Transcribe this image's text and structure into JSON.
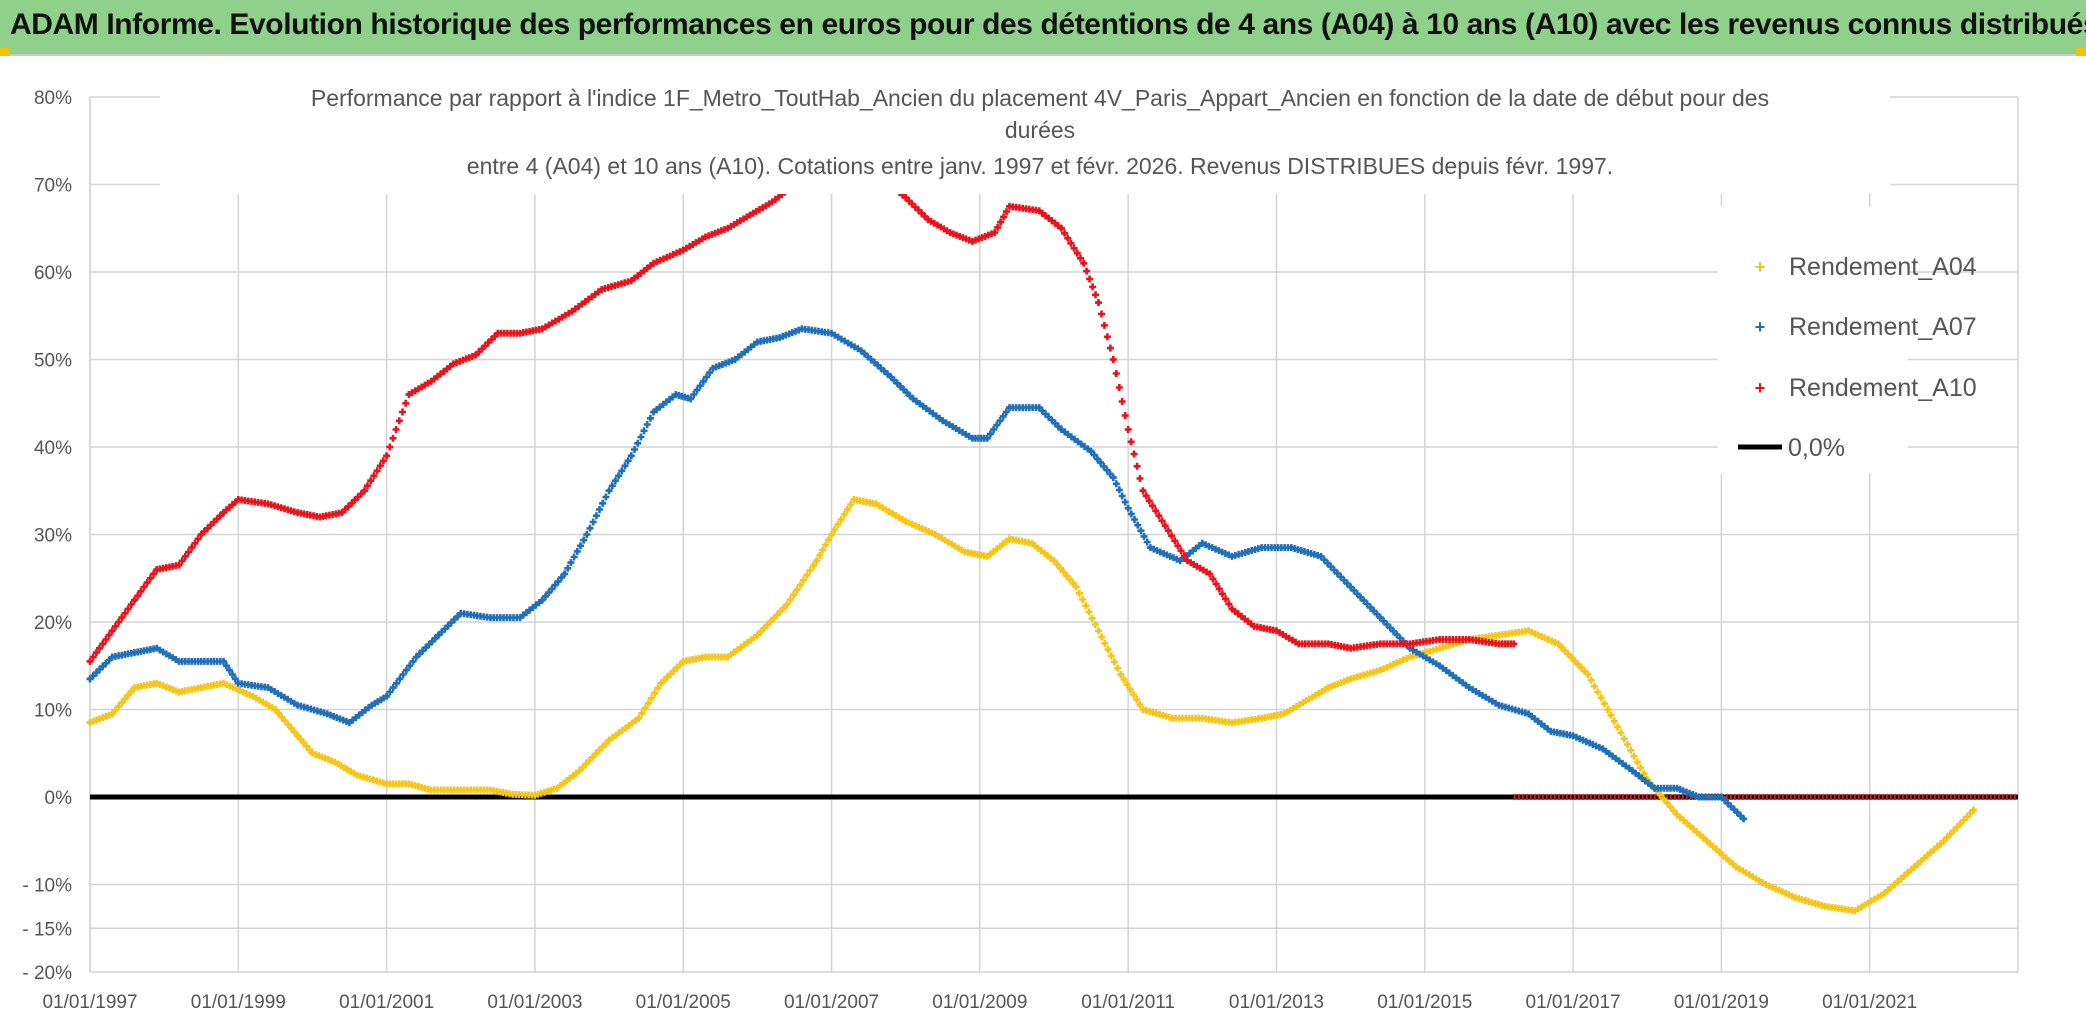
{
  "header": {
    "title": "ADAM Informe. Evolution historique des performances en euros pour des détentions de 4 ans (A04) à 10 ans (A10) avec les revenus connus distribués"
  },
  "chart_data": {
    "type": "scatter",
    "title_lines": [
      "Performance par rapport à l'indice 1F_Metro_ToutHab_Ancien  du placement 4V_Paris_Appart_Ancien en fonction de la date de début pour des",
      "durées",
      "entre 4 (A04) et 10 ans (A10). Cotations entre janv. 1997 et févr. 2026. Revenus DISTRIBUES depuis févr. 1997."
    ],
    "xlabel": "",
    "ylabel": "",
    "x_range": [
      1997.0,
      2023.0
    ],
    "ylim": [
      -20,
      80
    ],
    "x_tick_labels": [
      "01/01/1997",
      "01/01/1999",
      "01/01/2001",
      "01/01/2003",
      "01/01/2005",
      "01/01/2007",
      "01/01/2009",
      "01/01/2011",
      "01/01/2013",
      "01/01/2015",
      "01/01/2017",
      "01/01/2019",
      "01/01/2021"
    ],
    "x_tick_values": [
      1997,
      1999,
      2001,
      2003,
      2005,
      2007,
      2009,
      2011,
      2013,
      2015,
      2017,
      2019,
      2021
    ],
    "y_tick_labels": [
      "80%",
      "70%",
      "60%",
      "50%",
      "40%",
      "30%",
      "20%",
      "10%",
      "0%",
      "- 10%",
      "- 15%",
      "- 20%"
    ],
    "y_tick_values": [
      80,
      70,
      60,
      50,
      40,
      30,
      20,
      10,
      0,
      -10,
      -15,
      -20
    ],
    "grid": true,
    "legend_position": "top-right",
    "series": [
      {
        "name": "Rendement_A04",
        "color": "#f5c518",
        "points": [
          [
            1997.0,
            8.5
          ],
          [
            1997.3,
            9.5
          ],
          [
            1997.6,
            12.5
          ],
          [
            1997.9,
            13.0
          ],
          [
            1998.2,
            12.0
          ],
          [
            1998.5,
            12.5
          ],
          [
            1998.8,
            13.0
          ],
          [
            1999.2,
            11.5
          ],
          [
            1999.5,
            10.0
          ],
          [
            1999.8,
            7.0
          ],
          [
            2000.0,
            5.0
          ],
          [
            2000.3,
            4.0
          ],
          [
            2000.6,
            2.5
          ],
          [
            2001.0,
            1.5
          ],
          [
            2001.3,
            1.5
          ],
          [
            2001.6,
            0.8
          ],
          [
            2002.0,
            0.8
          ],
          [
            2002.4,
            0.8
          ],
          [
            2002.7,
            0.3
          ],
          [
            2003.0,
            0.2
          ],
          [
            2003.3,
            1.0
          ],
          [
            2003.6,
            3.0
          ],
          [
            2004.0,
            6.5
          ],
          [
            2004.4,
            9.0
          ],
          [
            2004.7,
            13.0
          ],
          [
            2005.0,
            15.5
          ],
          [
            2005.3,
            16.0
          ],
          [
            2005.6,
            16.0
          ],
          [
            2006.0,
            18.5
          ],
          [
            2006.4,
            22.0
          ],
          [
            2006.8,
            27.0
          ],
          [
            2007.0,
            30.0
          ],
          [
            2007.3,
            34.0
          ],
          [
            2007.6,
            33.5
          ],
          [
            2008.0,
            31.5
          ],
          [
            2008.4,
            30.0
          ],
          [
            2008.8,
            28.0
          ],
          [
            2009.1,
            27.5
          ],
          [
            2009.4,
            29.5
          ],
          [
            2009.7,
            29.0
          ],
          [
            2010.0,
            27.0
          ],
          [
            2010.3,
            24.0
          ],
          [
            2010.6,
            19.0
          ],
          [
            2010.9,
            14.0
          ],
          [
            2011.2,
            10.0
          ],
          [
            2011.6,
            9.0
          ],
          [
            2012.0,
            9.0
          ],
          [
            2012.4,
            8.5
          ],
          [
            2012.8,
            9.0
          ],
          [
            2013.1,
            9.5
          ],
          [
            2013.4,
            11.0
          ],
          [
            2013.7,
            12.5
          ],
          [
            2014.0,
            13.5
          ],
          [
            2014.4,
            14.5
          ],
          [
            2014.8,
            16.0
          ],
          [
            2015.2,
            17.0
          ],
          [
            2015.6,
            18.0
          ],
          [
            2016.0,
            18.5
          ],
          [
            2016.4,
            19.0
          ],
          [
            2016.8,
            17.5
          ],
          [
            2017.2,
            14.0
          ],
          [
            2017.6,
            8.0
          ],
          [
            2018.0,
            2.0
          ],
          [
            2018.4,
            -2.0
          ],
          [
            2018.8,
            -5.0
          ],
          [
            2019.2,
            -8.0
          ],
          [
            2019.6,
            -10.0
          ],
          [
            2020.0,
            -11.5
          ],
          [
            2020.4,
            -12.5
          ],
          [
            2020.8,
            -13.0
          ],
          [
            2021.2,
            -11.0
          ],
          [
            2021.6,
            -8.0
          ],
          [
            2022.0,
            -5.0
          ],
          [
            2022.4,
            -1.5
          ]
        ]
      },
      {
        "name": "Rendement_A07",
        "color": "#1f70b8",
        "points": [
          [
            1997.0,
            13.5
          ],
          [
            1997.3,
            16.0
          ],
          [
            1997.6,
            16.5
          ],
          [
            1997.9,
            17.0
          ],
          [
            1998.2,
            15.5
          ],
          [
            1998.5,
            15.5
          ],
          [
            1998.8,
            15.5
          ],
          [
            1999.0,
            13.0
          ],
          [
            1999.4,
            12.5
          ],
          [
            1999.8,
            10.5
          ],
          [
            2000.2,
            9.5
          ],
          [
            2000.5,
            8.5
          ],
          [
            2000.8,
            10.5
          ],
          [
            2001.0,
            11.5
          ],
          [
            2001.4,
            16.0
          ],
          [
            2001.7,
            18.5
          ],
          [
            2002.0,
            21.0
          ],
          [
            2002.4,
            20.5
          ],
          [
            2002.8,
            20.5
          ],
          [
            2003.1,
            22.5
          ],
          [
            2003.4,
            25.5
          ],
          [
            2003.7,
            30.0
          ],
          [
            2004.0,
            35.0
          ],
          [
            2004.3,
            39.0
          ],
          [
            2004.6,
            44.0
          ],
          [
            2004.9,
            46.0
          ],
          [
            2005.1,
            45.5
          ],
          [
            2005.4,
            49.0
          ],
          [
            2005.7,
            50.0
          ],
          [
            2006.0,
            52.0
          ],
          [
            2006.3,
            52.5
          ],
          [
            2006.6,
            53.5
          ],
          [
            2007.0,
            53.0
          ],
          [
            2007.4,
            51.0
          ],
          [
            2007.8,
            48.0
          ],
          [
            2008.1,
            45.5
          ],
          [
            2008.5,
            43.0
          ],
          [
            2008.9,
            41.0
          ],
          [
            2009.1,
            41.0
          ],
          [
            2009.4,
            44.5
          ],
          [
            2009.8,
            44.5
          ],
          [
            2010.1,
            42.0
          ],
          [
            2010.5,
            39.5
          ],
          [
            2010.8,
            36.5
          ],
          [
            2011.0,
            33.0
          ],
          [
            2011.3,
            28.5
          ],
          [
            2011.7,
            27.0
          ],
          [
            2012.0,
            29.0
          ],
          [
            2012.4,
            27.5
          ],
          [
            2012.8,
            28.5
          ],
          [
            2013.2,
            28.5
          ],
          [
            2013.6,
            27.5
          ],
          [
            2014.0,
            24.0
          ],
          [
            2014.4,
            20.5
          ],
          [
            2014.8,
            17.0
          ],
          [
            2015.2,
            15.0
          ],
          [
            2015.6,
            12.5
          ],
          [
            2016.0,
            10.5
          ],
          [
            2016.4,
            9.5
          ],
          [
            2016.7,
            7.5
          ],
          [
            2017.0,
            7.0
          ],
          [
            2017.4,
            5.5
          ],
          [
            2017.8,
            3.0
          ],
          [
            2018.1,
            1.0
          ],
          [
            2018.4,
            1.0
          ],
          [
            2018.7,
            0.0
          ],
          [
            2019.0,
            0.0
          ],
          [
            2019.3,
            -2.5
          ]
        ]
      },
      {
        "name": "Rendement_A10",
        "color": "#e8141c",
        "points": [
          [
            1997.0,
            15.5
          ],
          [
            1997.3,
            19.0
          ],
          [
            1997.6,
            22.5
          ],
          [
            1997.9,
            26.0
          ],
          [
            1998.2,
            26.5
          ],
          [
            1998.5,
            30.0
          ],
          [
            1998.8,
            32.5
          ],
          [
            1999.0,
            34.0
          ],
          [
            1999.4,
            33.5
          ],
          [
            1999.8,
            32.5
          ],
          [
            2000.1,
            32.0
          ],
          [
            2000.4,
            32.5
          ],
          [
            2000.7,
            35.0
          ],
          [
            2001.0,
            39.0
          ],
          [
            2001.3,
            46.0
          ],
          [
            2001.6,
            47.5
          ],
          [
            2001.9,
            49.5
          ],
          [
            2002.2,
            50.5
          ],
          [
            2002.5,
            53.0
          ],
          [
            2002.8,
            53.0
          ],
          [
            2003.1,
            53.5
          ],
          [
            2003.5,
            55.5
          ],
          [
            2003.9,
            58.0
          ],
          [
            2004.3,
            59.0
          ],
          [
            2004.6,
            61.0
          ],
          [
            2005.0,
            62.5
          ],
          [
            2005.3,
            64.0
          ],
          [
            2005.6,
            65.0
          ],
          [
            2005.9,
            66.5
          ],
          [
            2006.2,
            68.0
          ],
          [
            2006.5,
            70.0
          ],
          [
            2007.0,
            71.5
          ],
          [
            2007.5,
            72.0
          ],
          [
            2008.0,
            68.5
          ],
          [
            2008.3,
            66.0
          ],
          [
            2008.6,
            64.5
          ],
          [
            2008.9,
            63.5
          ],
          [
            2009.2,
            64.5
          ],
          [
            2009.4,
            67.5
          ],
          [
            2009.8,
            67.0
          ],
          [
            2010.1,
            65.0
          ],
          [
            2010.4,
            61.0
          ],
          [
            2010.6,
            56.5
          ],
          [
            2010.8,
            50.0
          ],
          [
            2011.0,
            42.0
          ],
          [
            2011.2,
            35.0
          ],
          [
            2011.5,
            31.0
          ],
          [
            2011.8,
            27.0
          ],
          [
            2012.1,
            25.5
          ],
          [
            2012.4,
            21.5
          ],
          [
            2012.7,
            19.5
          ],
          [
            2013.0,
            19.0
          ],
          [
            2013.3,
            17.5
          ],
          [
            2013.7,
            17.5
          ],
          [
            2014.0,
            17.0
          ],
          [
            2014.4,
            17.5
          ],
          [
            2014.8,
            17.5
          ],
          [
            2015.2,
            18.0
          ],
          [
            2015.6,
            18.0
          ],
          [
            2016.0,
            17.5
          ],
          [
            2016.2,
            17.5
          ]
        ]
      },
      {
        "name": "0,0%",
        "color": "#000000",
        "points": [
          [
            1997.0,
            0.0
          ],
          [
            2023.0,
            0.0
          ]
        ]
      }
    ],
    "zero_cluster_note": "",
    "red_zero_from": 2016.2
  }
}
